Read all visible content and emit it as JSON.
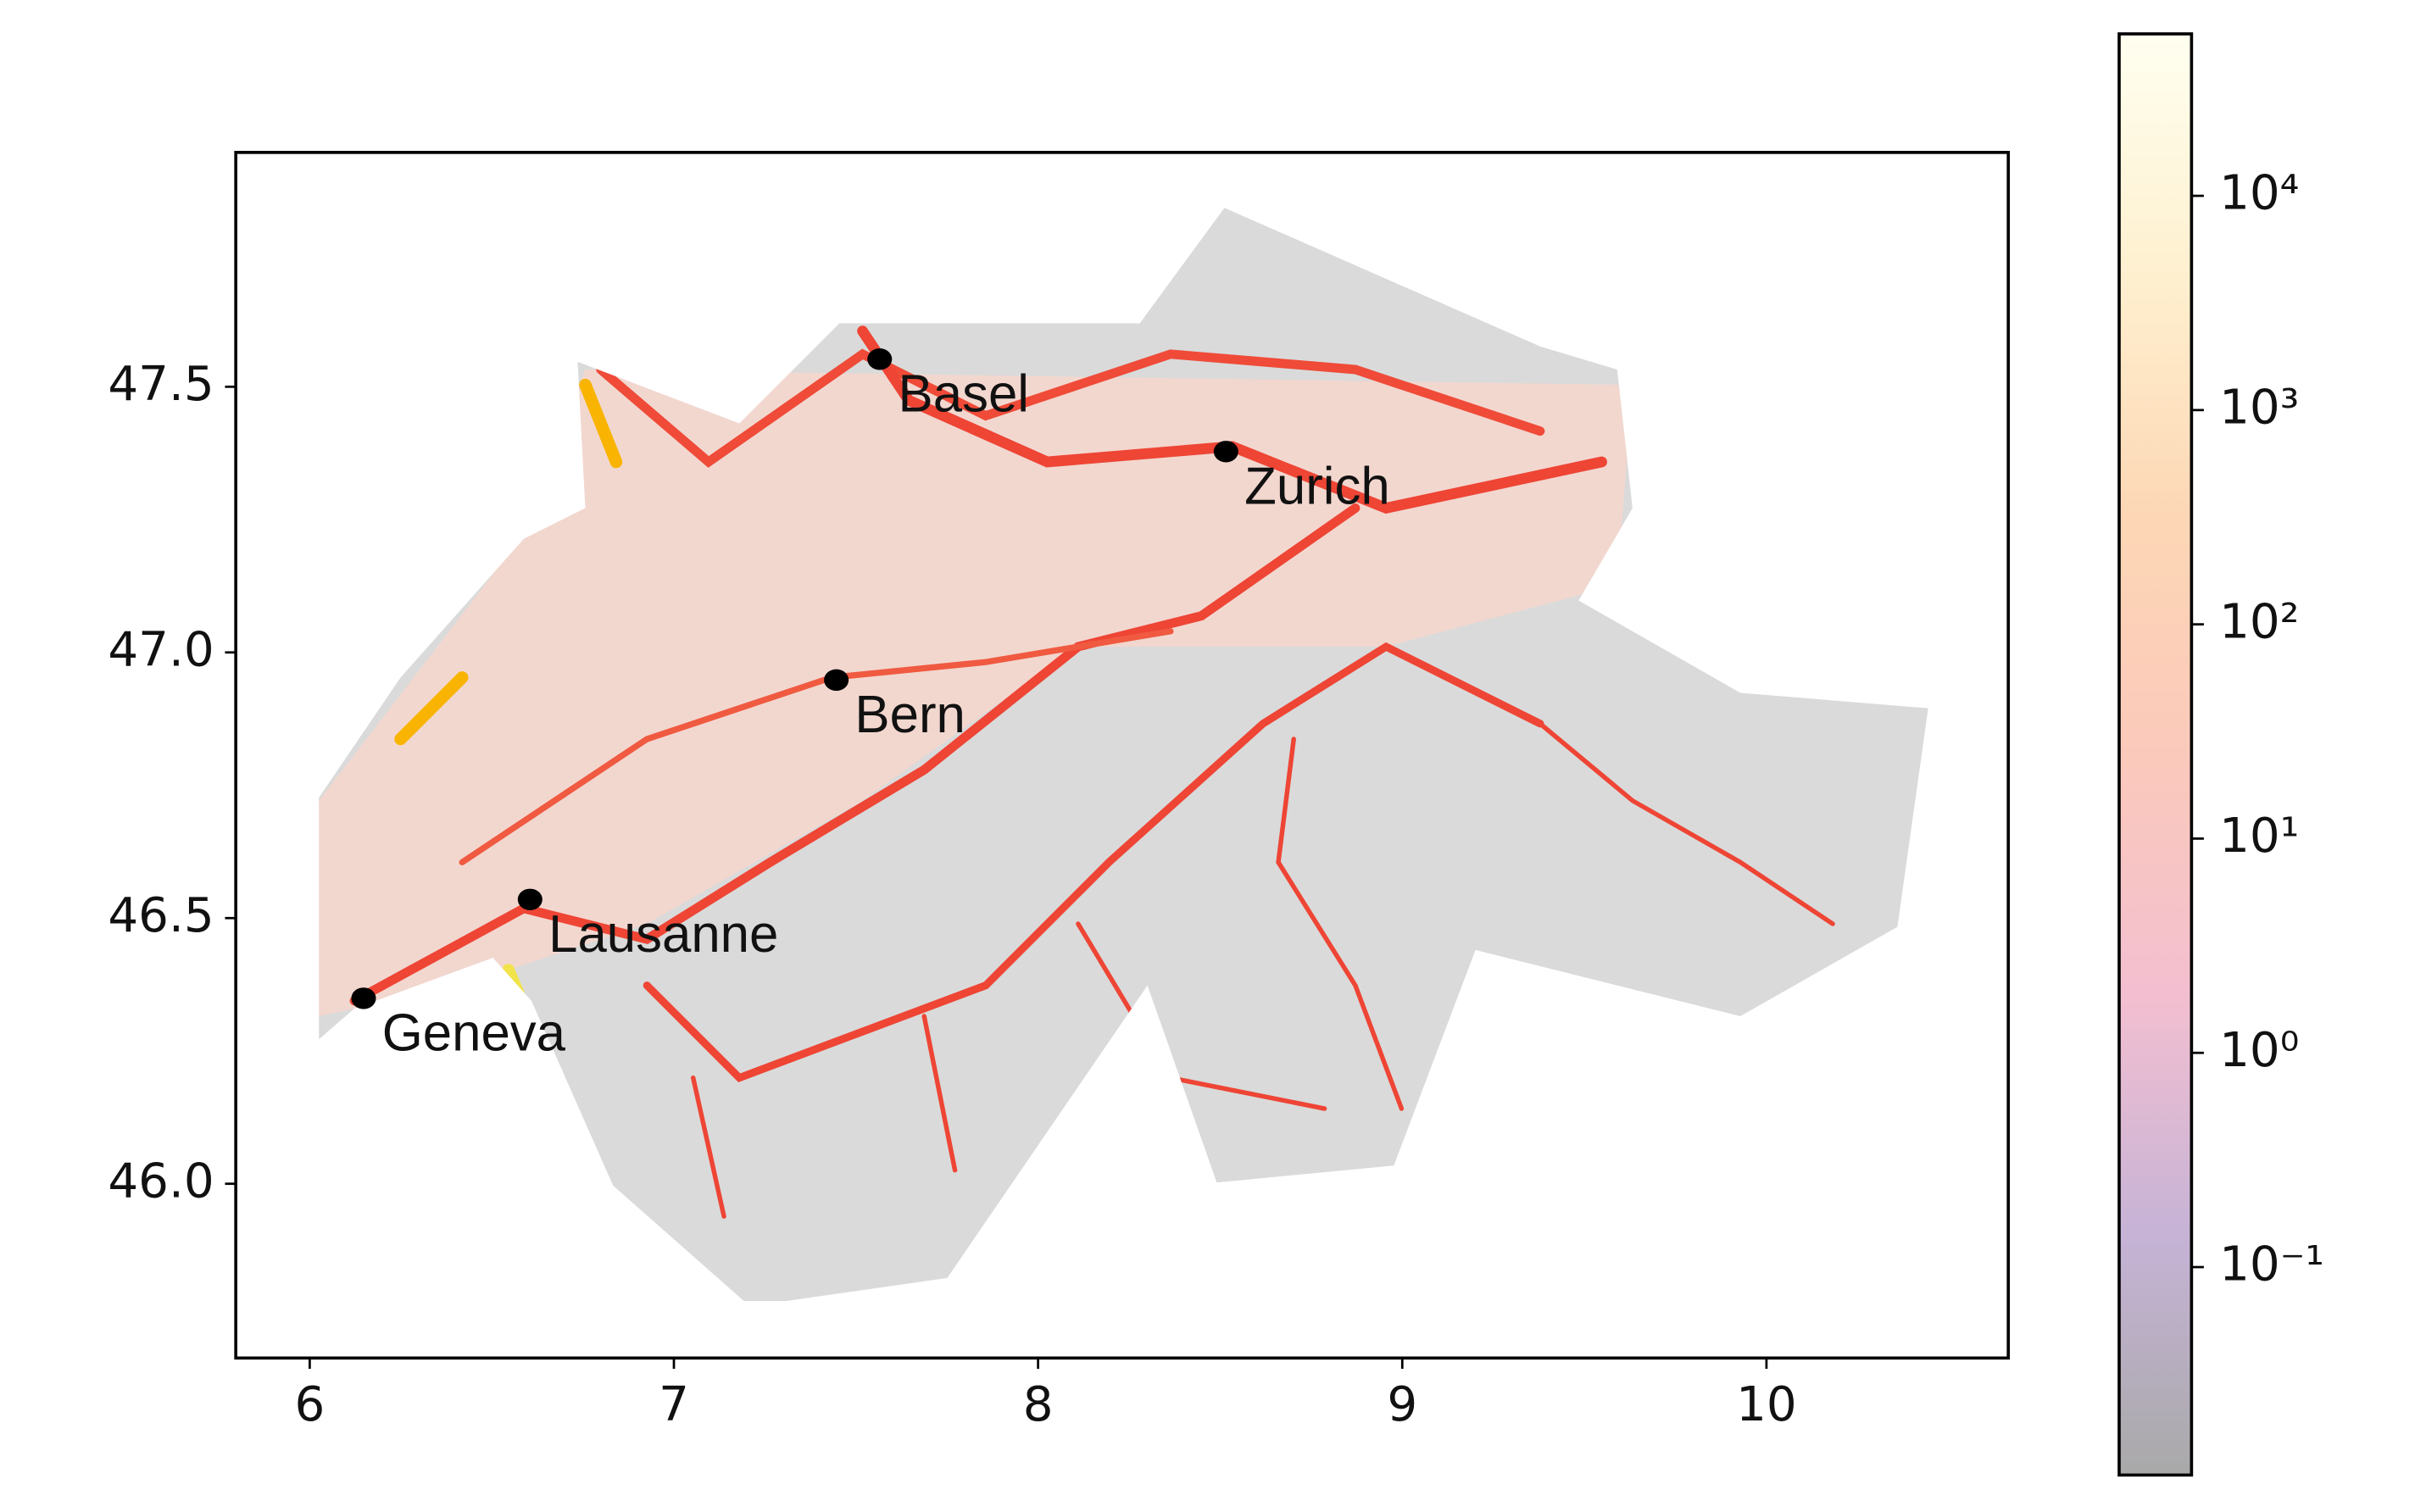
{
  "chart_data": {
    "type": "scatter",
    "x_label_type": "longitude",
    "xlim": [
      5.797,
      10.664
    ],
    "ylim": [
      45.672,
      47.941
    ],
    "xticks": [
      6,
      7,
      8,
      9,
      10
    ],
    "yticks": [
      {
        "value": 46,
        "label": "46.0"
      },
      46.5,
      {
        "value": 47,
        "label": "47.0"
      },
      47.5
    ],
    "categories": [
      "Basel",
      "Zurich",
      "Bern",
      "Lausanne",
      "Geneva"
    ],
    "x": [
      7.565,
      8.516,
      7.446,
      6.605,
      6.148
    ],
    "values": [
      47.552,
      47.378,
      46.948,
      46.535,
      46.349
    ],
    "color": "#000000",
    "colorbar": {
      "scale": "log",
      "lim": [
        0.0107,
        57000
      ],
      "ticks": [
        {
          "value": 0.1,
          "label": "10⁻¹"
        },
        {
          "value": 1,
          "label": "10⁰"
        },
        {
          "value": 10,
          "label": "10¹"
        },
        {
          "value": 100,
          "label": "10²"
        },
        {
          "value": 1000,
          "label": "10³"
        },
        {
          "value": 10000,
          "label": "10⁴"
        }
      ],
      "colors": [
        "#a9a9a9",
        "#c6b3d6",
        "#f3bfd0",
        "#fbc9bb",
        "#fdd7b5",
        "#fef0cf",
        "#fffff0"
      ]
    }
  }
}
